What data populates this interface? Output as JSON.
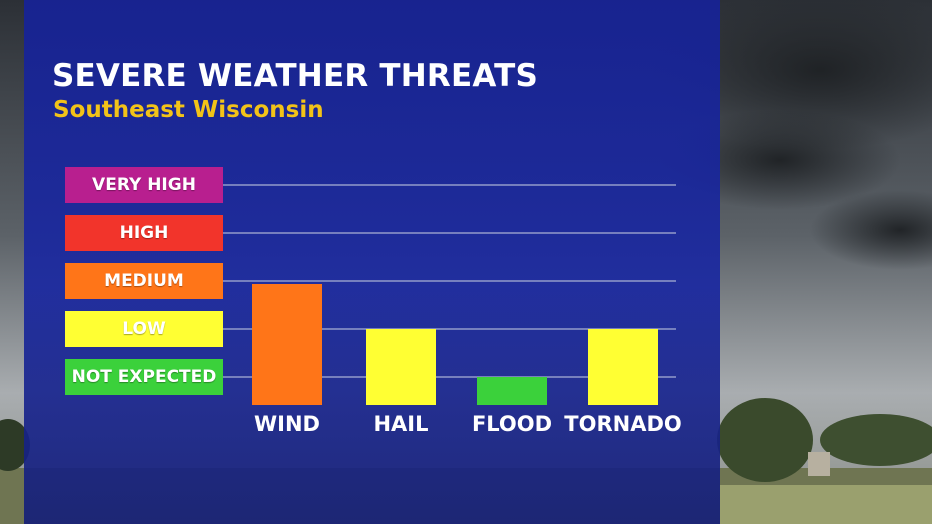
{
  "header": {
    "title": "SEVERE WEATHER THREATS",
    "subtitle": "Southeast Wisconsin"
  },
  "chart_data": {
    "type": "bar",
    "title": "SEVERE WEATHER THREATS",
    "subtitle": "Southeast Wisconsin",
    "categories": [
      "WIND",
      "HAIL",
      "FLOOD",
      "TORNADO"
    ],
    "values": [
      2,
      1,
      0,
      1
    ],
    "levels": [
      {
        "label": "NOT EXPECTED",
        "value": 0,
        "color": "#3bd13b"
      },
      {
        "label": "LOW",
        "value": 1,
        "color": "#ffff33"
      },
      {
        "label": "MEDIUM",
        "value": 2,
        "color": "#ff7518"
      },
      {
        "label": "HIGH",
        "value": 3,
        "color": "#f2342b"
      },
      {
        "label": "VERY HIGH",
        "value": 4,
        "color": "#b81f8f"
      }
    ],
    "ylim": [
      0,
      4
    ],
    "grid": true,
    "legend": "left"
  }
}
